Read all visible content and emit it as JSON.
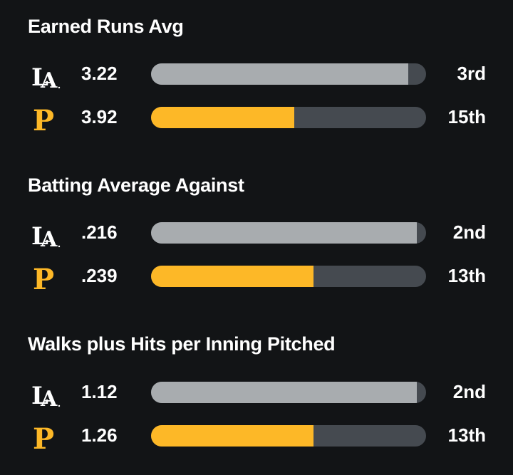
{
  "colors": {
    "background": "#121416",
    "text": "#ffffff",
    "track": "#454a50",
    "la_bar": "#a8acaf",
    "pit_bar": "#fdb827",
    "pit_logo": "#fdb827",
    "la_logo": "#ffffff"
  },
  "teams": {
    "la": {
      "logo_icon": "dodgers-la-logo-icon"
    },
    "pit": {
      "logo_icon": "pirates-p-logo-icon"
    }
  },
  "sections": [
    {
      "title": "Earned Runs Avg",
      "rows": [
        {
          "team": "la",
          "value": "3.22",
          "rank": "3rd",
          "fill_fraction": 0.935
        },
        {
          "team": "pit",
          "value": "3.92",
          "rank": "15th",
          "fill_fraction": 0.52
        }
      ]
    },
    {
      "title": "Batting Average Against",
      "rows": [
        {
          "team": "la",
          "value": ".216",
          "rank": "2nd",
          "fill_fraction": 0.967
        },
        {
          "team": "pit",
          "value": ".239",
          "rank": "13th",
          "fill_fraction": 0.59
        }
      ]
    },
    {
      "title": "Walks plus Hits per Inning Pitched",
      "rows": [
        {
          "team": "la",
          "value": "1.12",
          "rank": "2nd",
          "fill_fraction": 0.967
        },
        {
          "team": "pit",
          "value": "1.26",
          "rank": "13th",
          "fill_fraction": 0.59
        }
      ]
    }
  ]
}
